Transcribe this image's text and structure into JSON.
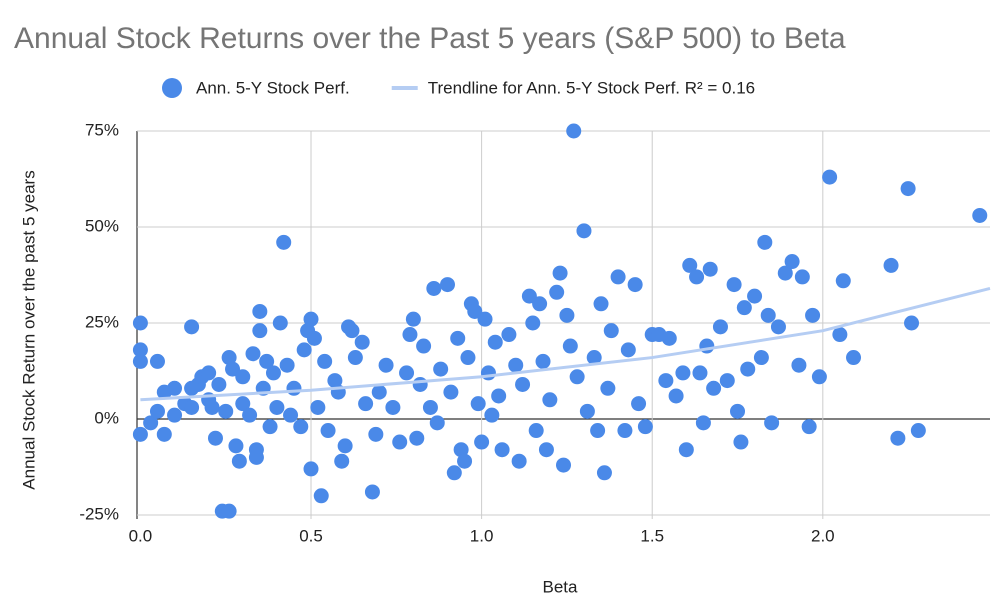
{
  "chart_data": {
    "type": "scatter",
    "title": "Annual Stock Returns over the Past 5 years (S&P 500) to Beta",
    "x_label": "Beta",
    "y_label": "Annual Stock Return over the past 5 years",
    "xlim": [
      -0.01,
      2.49
    ],
    "ylim": [
      -25,
      75
    ],
    "xticks": [
      {
        "value": 0,
        "label": "0.0"
      },
      0.5,
      {
        "value": 1,
        "label": "1.0"
      },
      1.5,
      {
        "value": 2,
        "label": "2.0"
      }
    ],
    "yticks": [
      {
        "value": -25,
        "label": "-25%"
      },
      {
        "value": 0,
        "label": "0%"
      },
      {
        "value": 25,
        "label": "25%"
      },
      {
        "value": 50,
        "label": "50%"
      },
      {
        "value": 75,
        "label": "75%"
      }
    ],
    "grid": true,
    "legend": "top",
    "series": [
      {
        "name": "Ann. 5-Y Stock Perf.",
        "color": "#4a89e8",
        "kind": "points",
        "x": [
          0,
          0,
          0,
          0.05,
          0,
          0.03,
          0.05,
          0.07,
          0.07,
          0.1,
          0.1,
          0.13,
          0.15,
          0.15,
          0.15,
          0.17,
          0.18,
          0.2,
          0.2,
          0.21,
          0.22,
          0.23,
          0.24,
          0.26,
          0.25,
          0.26,
          0.27,
          0.28,
          0.29,
          0.3,
          0.3,
          0.32,
          0.33,
          0.34,
          0.34,
          0.35,
          0.35,
          0.36,
          0.37,
          0.38,
          0.39,
          0.4,
          0.41,
          0.42,
          0.43,
          0.44,
          0.45,
          0.47,
          0.48,
          0.49,
          0.5,
          0.5,
          0.51,
          0.52,
          0.53,
          0.54,
          0.55,
          0.57,
          0.58,
          0.59,
          0.6,
          0.61,
          0.62,
          0.63,
          0.65,
          0.66,
          0.68,
          0.69,
          0.7,
          0.72,
          0.74,
          0.76,
          0.78,
          0.79,
          0.8,
          0.81,
          0.82,
          0.83,
          0.85,
          0.86,
          0.87,
          0.88,
          0.9,
          0.91,
          0.92,
          0.93,
          0.94,
          0.95,
          0.96,
          0.97,
          0.98,
          0.99,
          1,
          1.01,
          1.02,
          1.03,
          1.04,
          1.05,
          1.06,
          1.08,
          1.1,
          1.11,
          1.12,
          1.14,
          1.15,
          1.16,
          1.17,
          1.18,
          1.19,
          1.2,
          1.22,
          1.23,
          1.24,
          1.25,
          1.26,
          1.27,
          1.28,
          1.3,
          1.31,
          1.33,
          1.34,
          1.35,
          1.36,
          1.37,
          1.38,
          1.4,
          1.42,
          1.43,
          1.45,
          1.46,
          1.48,
          1.5,
          1.52,
          1.54,
          1.55,
          1.57,
          1.59,
          1.6,
          1.61,
          1.63,
          1.64,
          1.65,
          1.66,
          1.67,
          1.68,
          1.7,
          1.72,
          1.74,
          1.75,
          1.76,
          1.77,
          1.78,
          1.8,
          1.82,
          1.83,
          1.84,
          1.85,
          1.87,
          1.89,
          1.91,
          1.93,
          1.94,
          1.96,
          1.97,
          1.99,
          2.02,
          2.05,
          2.06,
          2.09,
          2.2,
          2.22,
          2.25,
          2.26,
          2.28,
          2.46
        ],
        "values": [
          25,
          18,
          15,
          15,
          -4,
          -1,
          2,
          7,
          -4,
          8,
          1,
          4,
          24,
          8,
          3,
          9,
          11,
          12,
          5,
          3,
          -5,
          9,
          -24,
          -24,
          2,
          16,
          13,
          -7,
          -11,
          4,
          11,
          1,
          17,
          -8,
          -10,
          28,
          23,
          8,
          15,
          -2,
          12,
          3,
          25,
          46,
          14,
          1,
          8,
          -2,
          18,
          23,
          -13,
          26,
          21,
          3,
          -20,
          15,
          -3,
          10,
          7,
          -11,
          -7,
          24,
          23,
          16,
          20,
          4,
          -19,
          -4,
          7,
          14,
          3,
          -6,
          12,
          22,
          26,
          -5,
          9,
          19,
          3,
          34,
          -1,
          13,
          35,
          7,
          -14,
          21,
          -8,
          -11,
          16,
          30,
          28,
          4,
          -6,
          26,
          12,
          1,
          20,
          6,
          -8,
          22,
          14,
          -11,
          9,
          32,
          25,
          -3,
          30,
          15,
          -8,
          5,
          33,
          38,
          -12,
          27,
          19,
          75,
          11,
          49,
          2,
          16,
          -3,
          30,
          -14,
          8,
          23,
          37,
          -3,
          18,
          35,
          4,
          -2,
          22,
          22,
          10,
          21,
          6,
          12,
          -8,
          40,
          37,
          12,
          -1,
          19,
          39,
          8,
          24,
          10,
          35,
          2,
          -6,
          29,
          13,
          32,
          16,
          46,
          27,
          -1,
          24,
          38,
          41,
          14,
          37,
          -2,
          27,
          11,
          63,
          22,
          36,
          16,
          40,
          -5,
          60,
          25,
          -3,
          53
        ]
      },
      {
        "name": "Trendline for Ann. 5-Y Stock Perf. R² = 0.16",
        "color": "#b5cdf3",
        "kind": "line",
        "x": [
          0,
          0.5,
          1,
          1.5,
          2,
          2.49
        ],
        "values": [
          5,
          7.5,
          11,
          16,
          23,
          34
        ]
      }
    ]
  }
}
